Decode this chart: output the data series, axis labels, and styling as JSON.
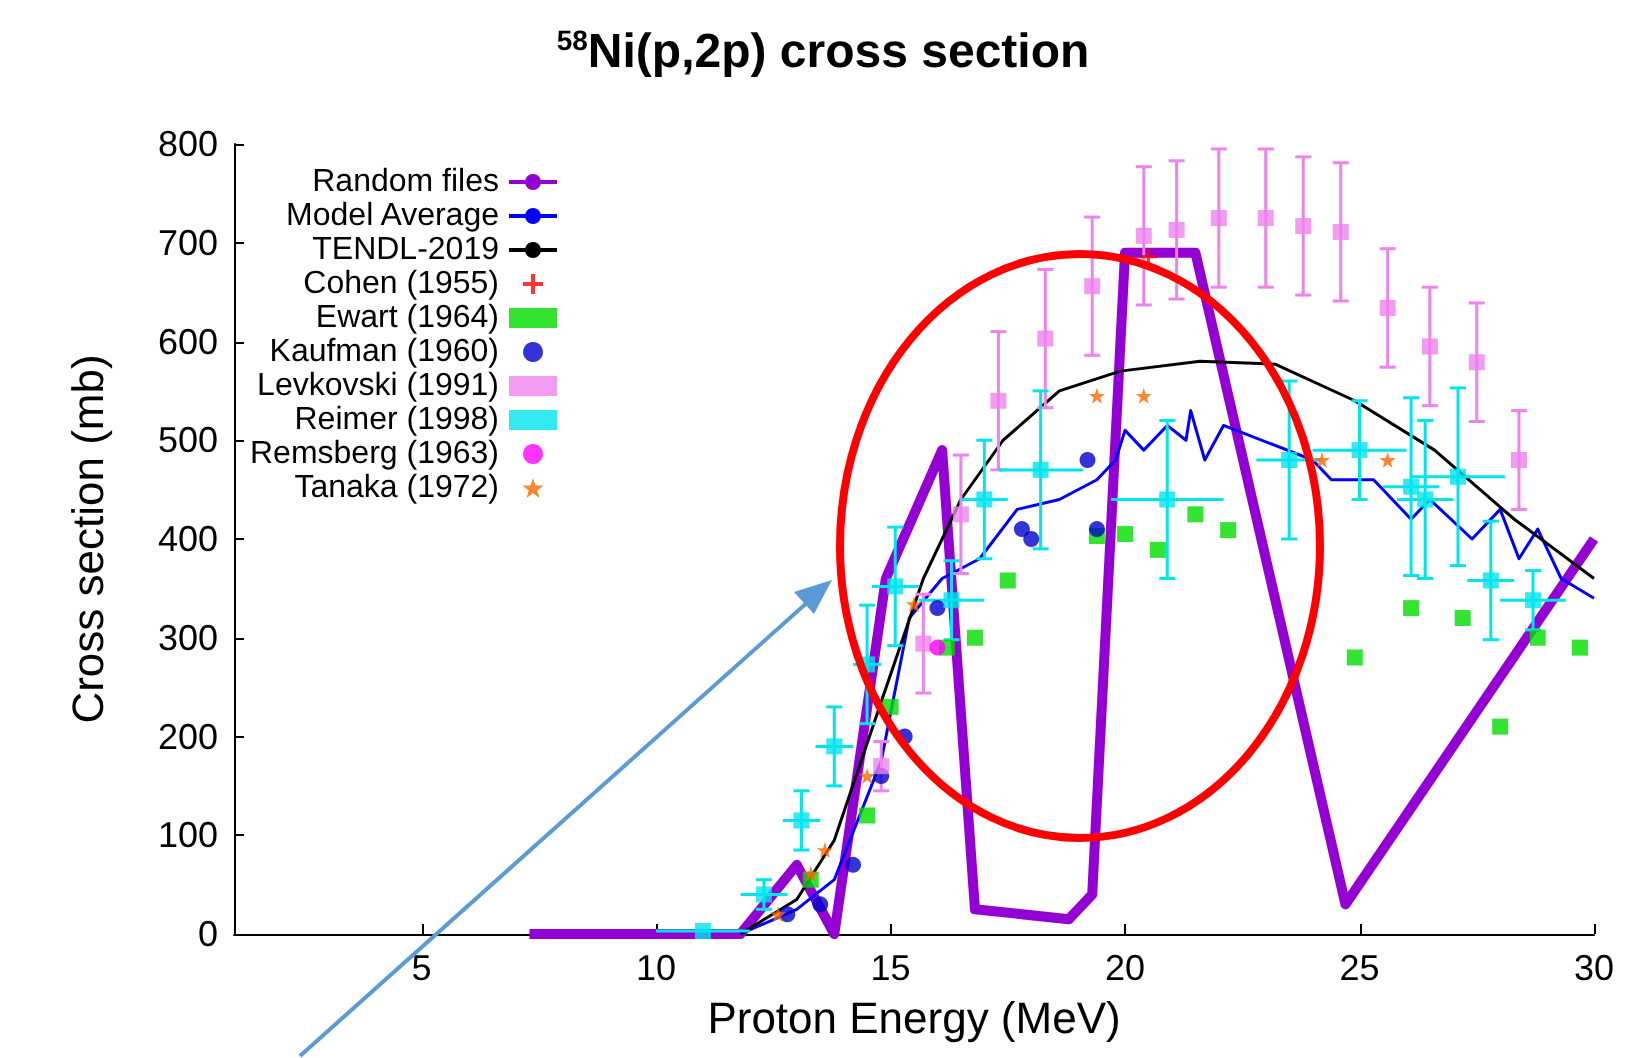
{
  "chart_data": {
    "type": "line",
    "title": "$^{58}$Ni(p,2p) cross section",
    "xlabel": "Proton Energy (MeV)",
    "ylabel": "Cross section (mb)",
    "xlim": [
      1,
      30
    ],
    "xticks": [
      5,
      10,
      15,
      20,
      25,
      30
    ],
    "ylim": [
      0,
      800
    ],
    "yticks": [
      0,
      100,
      200,
      300,
      400,
      500,
      600,
      700,
      800
    ],
    "grid": false,
    "legend": "top left",
    "series": [
      {
        "name": "Random files",
        "color": "#9400d3",
        "marker": "none",
        "x": [
          7.3,
          11.8,
          13,
          13.8,
          14.9,
          16.1,
          16.8,
          18.8,
          19.3,
          20,
          21.5,
          24.7,
          30
        ],
        "values": [
          0,
          0,
          70,
          0,
          360,
          490,
          25,
          15,
          40,
          690,
          690,
          30,
          400
        ]
      },
      {
        "name": "Model Average",
        "color": "#0000ff",
        "marker": "none",
        "x": [
          11.8,
          13,
          13.8,
          14.8,
          15.4,
          16.1,
          16.9,
          17.7,
          18.6,
          19.4,
          19.8,
          20,
          20.4,
          20.9,
          21.3,
          21.4,
          21.7,
          22.1,
          24,
          24.4,
          25.3,
          26.1,
          26.5,
          27.4,
          28,
          28.4,
          28.8,
          29.3,
          30
        ],
        "values": [
          0,
          25,
          55,
          175,
          320,
          360,
          380,
          430,
          440,
          460,
          480,
          510,
          490,
          515,
          500,
          530,
          480,
          515,
          480,
          460,
          460,
          420,
          440,
          400,
          430,
          380,
          410,
          360,
          340
        ]
      },
      {
        "name": "TENDL-2019",
        "color": "#000000",
        "marker": "none",
        "x": [
          11.8,
          13,
          13.8,
          14.8,
          15.7,
          16.5,
          17.4,
          18.6,
          19.9,
          21.6,
          23.2,
          24.9,
          26.6,
          28.3,
          30
        ],
        "values": [
          0,
          35,
          95,
          235,
          360,
          440,
          500,
          550,
          570,
          580,
          577,
          540,
          490,
          420,
          360
        ]
      },
      {
        "name": "Cohen (1955)",
        "type": "scatter",
        "color": "#ff0000",
        "marker": "cross",
        "x": [
          20.5
        ],
        "values": [
          686
        ]
      },
      {
        "name": "Ewart (1964)",
        "type": "scatter",
        "color": "#00dd00",
        "marker": "square",
        "x": [
          13.3,
          14.5,
          15,
          16.2,
          16.8,
          17.5,
          19.4,
          20,
          20.7,
          21.5,
          22.2,
          24.9,
          26.1,
          27.2,
          28,
          28.8,
          29.7
        ],
        "values": [
          55,
          120,
          230,
          290,
          300,
          358,
          403,
          405,
          389,
          425,
          409,
          280,
          330,
          320,
          210,
          300,
          290
        ]
      },
      {
        "name": "Kaufman (1960)",
        "type": "scatter",
        "color": "#0000cc",
        "marker": "circle",
        "x": [
          12.8,
          13.5,
          14.2,
          14.8,
          15.3,
          16,
          16.4,
          17.8,
          18,
          19.2,
          19.4
        ],
        "values": [
          20,
          30,
          70,
          160,
          200,
          330,
          null,
          410,
          400,
          480,
          410
        ]
      },
      {
        "name": "Levkovski (1991)",
        "type": "scatter",
        "color": "#ee82ee",
        "marker": "square",
        "x": [
          14.8,
          15.7,
          16.5,
          17.3,
          18.3,
          19.3,
          20.4,
          21.1,
          22,
          23,
          23.8,
          24.6,
          25.6,
          26.5,
          27.5,
          28.4
        ],
        "values": [
          170,
          294,
          425,
          540,
          603,
          656,
          707,
          713,
          725,
          725,
          717,
          711,
          634,
          595,
          579,
          480
        ],
        "errors": [
          25,
          50,
          60,
          70,
          70,
          70,
          70,
          70,
          70,
          70,
          70,
          70,
          60,
          60,
          60,
          50
        ]
      },
      {
        "name": "Reimer (1998)",
        "type": "scatter",
        "color": "#00e5ee",
        "marker": "square",
        "x": [
          11,
          12.3,
          13.1,
          13.8,
          14.5,
          15.1,
          16.3,
          17,
          18.2,
          20.9,
          23.5,
          25,
          26.1,
          26.4,
          27.1,
          27.8,
          28.7
        ],
        "values": [
          3,
          40,
          115,
          190,
          273,
          352,
          338,
          440,
          470,
          440,
          480,
          490,
          453,
          440,
          463,
          358,
          338
        ],
        "errors": [
          null,
          15,
          30,
          40,
          60,
          60,
          40,
          60,
          80,
          80,
          80,
          50,
          90,
          80,
          90,
          60,
          30
        ],
        "xerrors": [
          1,
          0.5,
          0.4,
          0.4,
          0.3,
          0.5,
          0.7,
          0.5,
          0.9,
          1.2,
          0.7,
          1,
          0.6,
          0.6,
          1,
          0.5,
          0.7
        ]
      },
      {
        "name": "Remsberg (1963)",
        "type": "scatter",
        "color": "#ff00ff",
        "marker": "circle",
        "x": [
          16
        ],
        "values": [
          290
        ]
      },
      {
        "name": "Tanaka (1972)",
        "type": "scatter",
        "color": "#ff6600",
        "marker": "star",
        "x": [
          12.6,
          13.3,
          13.6,
          14.5,
          15.5,
          19.4,
          20.4,
          24.2,
          25.6
        ],
        "values": [
          20,
          61,
          85,
          160,
          334,
          545,
          545,
          480,
          480
        ]
      }
    ]
  }
}
